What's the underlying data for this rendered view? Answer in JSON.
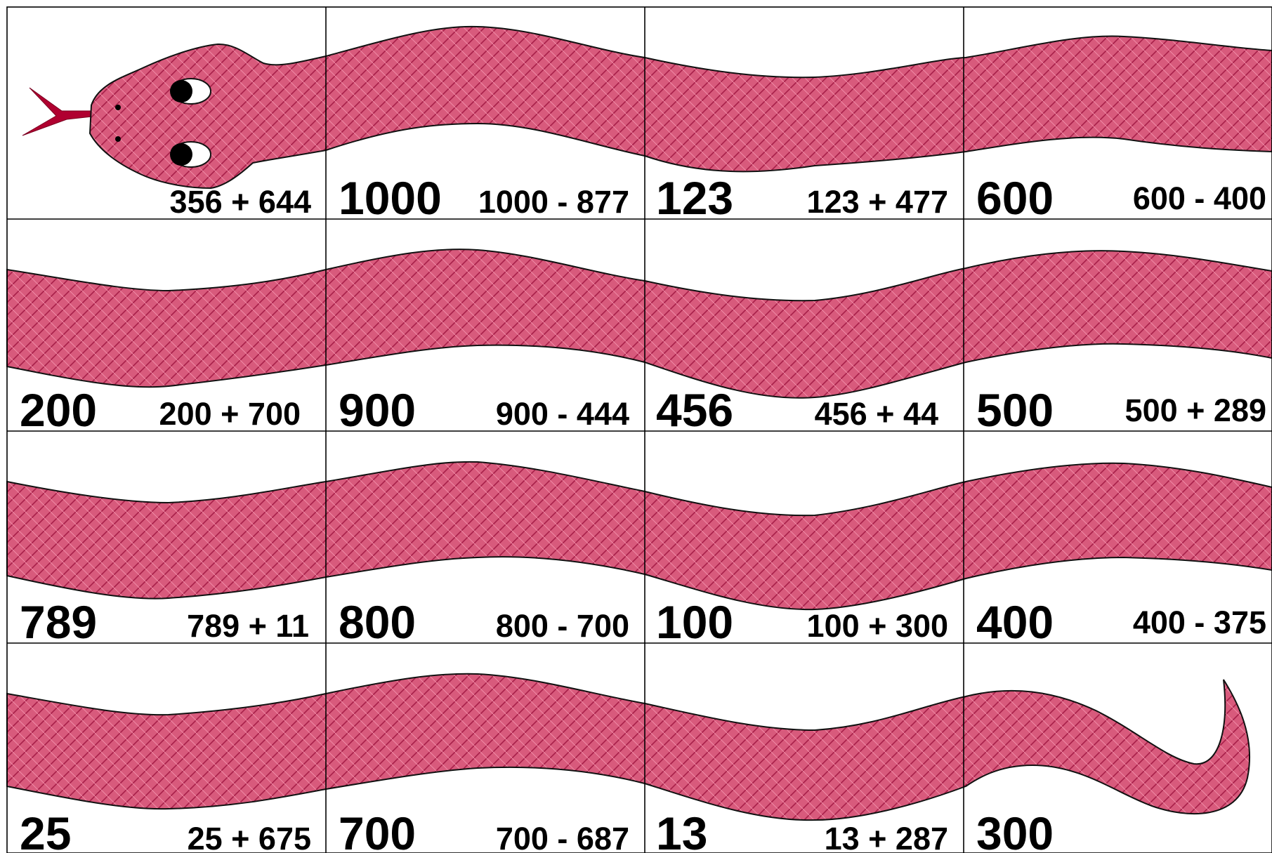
{
  "colors": {
    "snake_body": "#d85a7c",
    "scale_line": "#a8204a",
    "tongue": "#b00030",
    "outline": "#111111",
    "grid": "#000000"
  },
  "cards": [
    {
      "answer": "",
      "problem": "356 + 644"
    },
    {
      "answer": "1000",
      "problem": "1000 - 877"
    },
    {
      "answer": "123",
      "problem": "123 + 477"
    },
    {
      "answer": "600",
      "problem": "600 - 400"
    },
    {
      "answer": "200",
      "problem": "200 + 700"
    },
    {
      "answer": "900",
      "problem": "900 - 444"
    },
    {
      "answer": "456",
      "problem": "456 + 44"
    },
    {
      "answer": "500",
      "problem": "500 + 289"
    },
    {
      "answer": "789",
      "problem": "789 + 11"
    },
    {
      "answer": "800",
      "problem": "800 - 700"
    },
    {
      "answer": "100",
      "problem": "100 + 300"
    },
    {
      "answer": "400",
      "problem": "400 - 375"
    },
    {
      "answer": "25",
      "problem": "25 + 675"
    },
    {
      "answer": "700",
      "problem": "700 - 687"
    },
    {
      "answer": "13",
      "problem": "13 + 287"
    },
    {
      "answer": "300",
      "problem": ""
    }
  ]
}
